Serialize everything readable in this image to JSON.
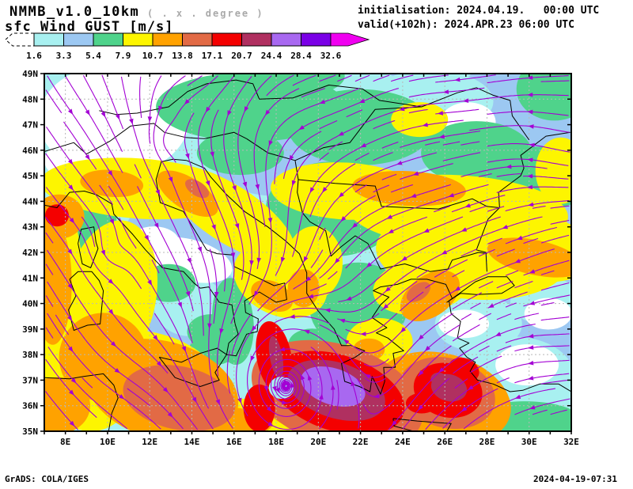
{
  "header": {
    "model_title": "NMMB_v1.0_10km",
    "grid_note": "( . x . degree )",
    "field_label": "sfc Wind GUST [m/s]",
    "init_line": "initialisation: 2024.04.19.   00:00 UTC",
    "valid_line": "valid(+102h): 2024.APR.23 06:00 UTC"
  },
  "colorbar": {
    "unit": "m/s",
    "tick_labels": [
      "1.6",
      "3.3",
      "5.4",
      "7.9",
      "10.7",
      "13.8",
      "17.1",
      "20.7",
      "24.4",
      "28.4",
      "32.6"
    ],
    "segment_colors": [
      "#ffffff",
      "#a8f0f0",
      "#9cc8f2",
      "#4fd38b",
      "#fdf500",
      "#ffa200",
      "#e26a45",
      "#f40000",
      "#b03060",
      "#a868f0",
      "#7a00e6"
    ],
    "overflow_arrow_color": "#f000f0"
  },
  "map": {
    "lat_labels": [
      "49N",
      "48N",
      "47N",
      "46N",
      "45N",
      "44N",
      "43N",
      "42N",
      "41N",
      "40N",
      "39N",
      "38N",
      "37N",
      "36N",
      "35N"
    ],
    "lon_labels": [
      "8E",
      "10E",
      "12E",
      "14E",
      "16E",
      "18E",
      "20E",
      "22E",
      "24E",
      "26E",
      "28E",
      "30E",
      "32E"
    ],
    "streamline_color": "#a300d4",
    "coast_color": "#000000",
    "grid_color": "#b8b8b8"
  },
  "footer": {
    "left_credit": "GrADS: COLA/IGES",
    "right_timestamp": "2024-04-19-07:31"
  },
  "chart_data": {
    "type": "heatmap",
    "title": "sfc Wind GUST [m/s]",
    "units": "m/s",
    "levels": [
      1.6,
      3.3,
      5.4,
      7.9,
      10.7,
      13.8,
      17.1,
      20.7,
      24.4,
      28.4,
      32.6
    ],
    "palette": [
      "#ffffff",
      "#a8f0f0",
      "#9cc8f2",
      "#4fd38b",
      "#fdf500",
      "#ffa200",
      "#e26a45",
      "#f40000",
      "#b03060",
      "#a868f0",
      "#7a00e6"
    ],
    "lon_range_deg_east": [
      7,
      32
    ],
    "lat_range_deg_north": [
      35,
      49
    ],
    "grid_step_deg": 2,
    "overlay": "surface wind streamlines with arrowheads",
    "notable_features": [
      {
        "area": "Ionian Sea cyclone core (~20.7E, 36.6N)",
        "gust_m_s": "28.4-32.6"
      },
      {
        "area": "Ionian red streak / SE of Sicily (~18E, 38N)",
        "gust_m_s": "20.7-24.4"
      },
      {
        "area": "SE Aegean (~26E, 36.6N)",
        "gust_m_s": "20.7-24.4"
      },
      {
        "area": "Ligurian Sea (~7.6E, 43.5N)",
        "gust_m_s": "17.1-20.7"
      },
      {
        "area": "Strait of Sicily (~12.6E, 36.6N)",
        "gust_m_s": "13.8-17.1"
      },
      {
        "area": "Cyclone eye, calm (~18.3E, 36.7N)",
        "gust_m_s": "1.6-3.3"
      },
      {
        "area": "Alps / NW corner, calm",
        "gust_m_s": "<1.6"
      }
    ]
  }
}
